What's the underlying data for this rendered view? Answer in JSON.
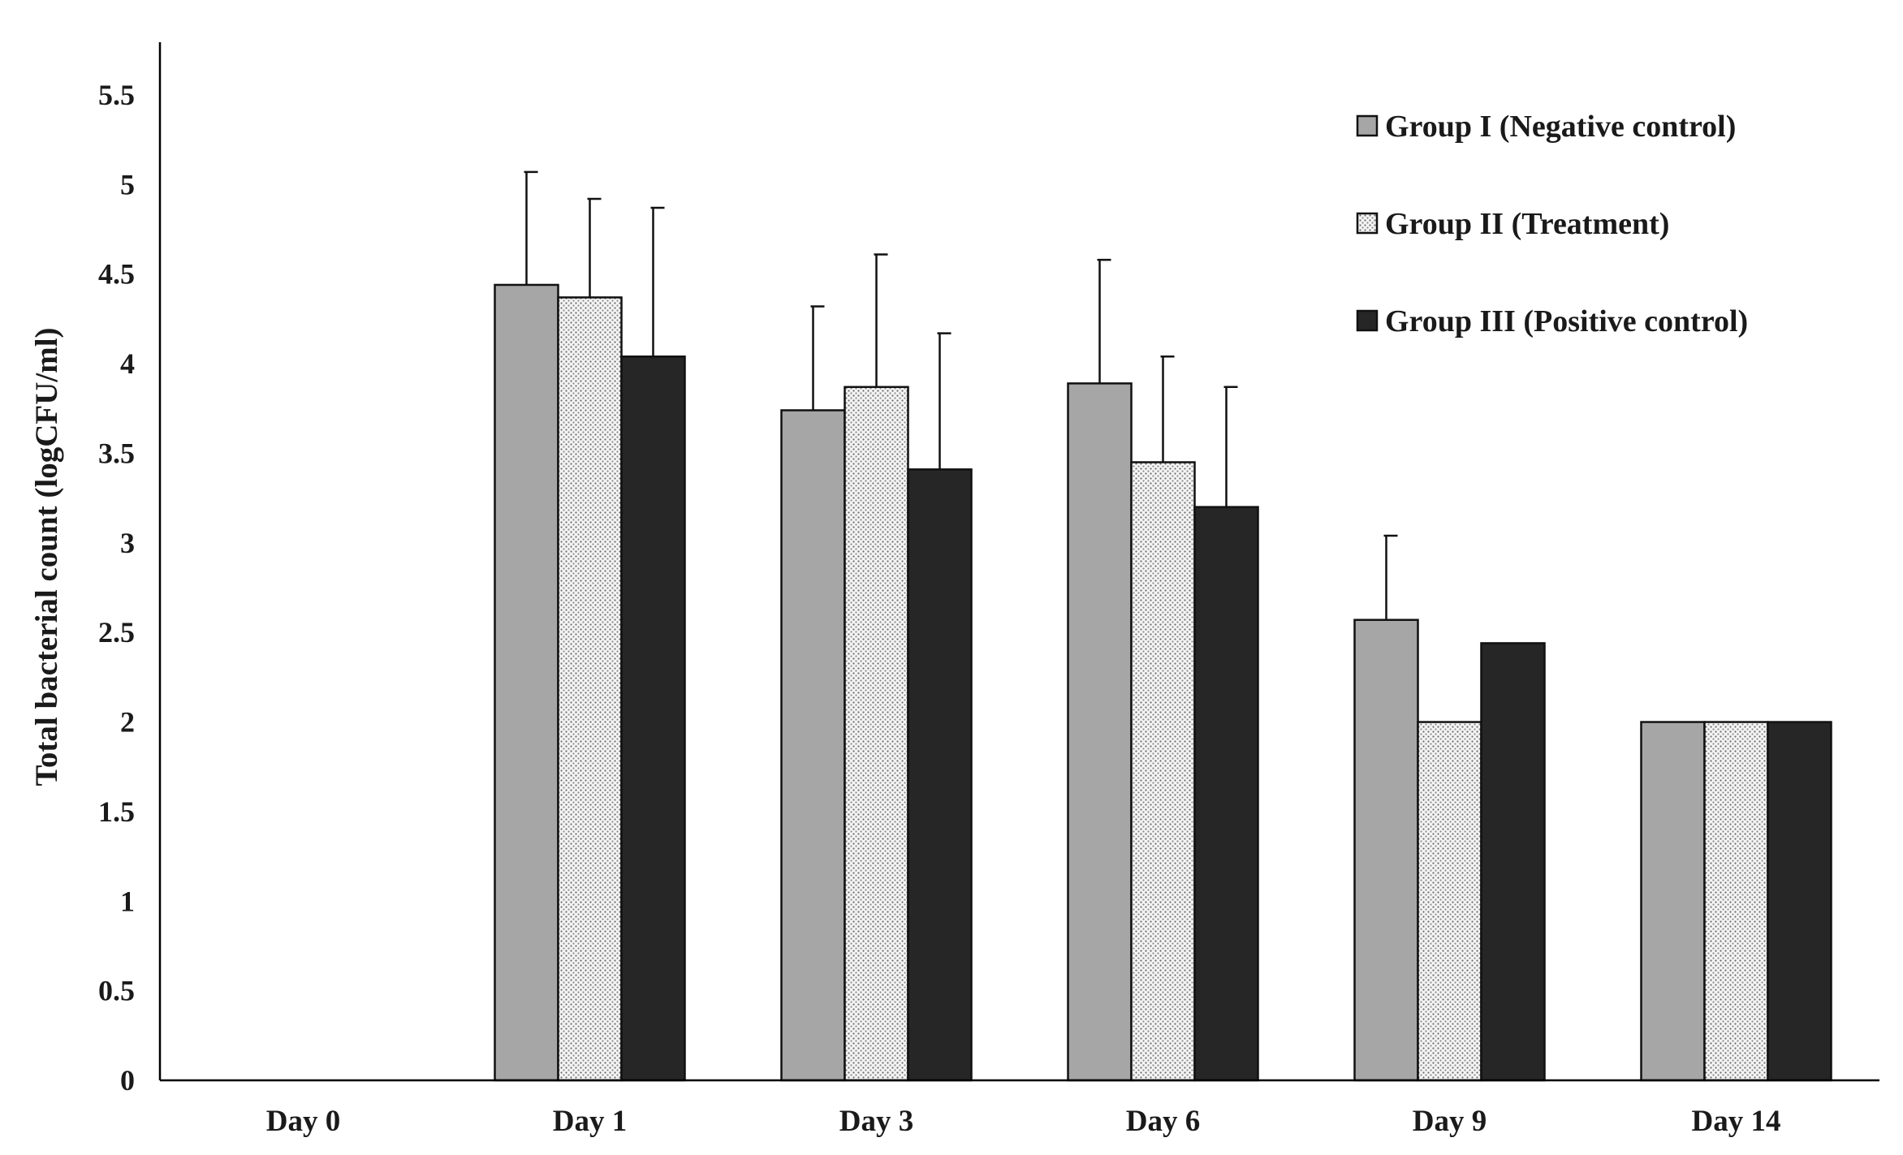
{
  "chart_data": {
    "type": "bar",
    "title": "",
    "xlabel": "",
    "ylabel": "Total bacterial count (logCFU/ml)",
    "ylim": [
      0,
      5.5
    ],
    "yticks": [
      "0",
      "0.5",
      "1",
      "1.5",
      "2",
      "2.5",
      "3",
      "3.5",
      "4",
      "4.5",
      "5",
      "5.5"
    ],
    "categories": [
      "Day 0",
      "Day 1",
      "Day 3",
      "Day 6",
      "Day 9",
      "Day 14"
    ],
    "series": [
      {
        "name": "Group I (Negative control)",
        "color": "#a6a6a6",
        "pattern": "solid",
        "values": [
          0,
          4.44,
          3.74,
          3.89,
          2.57,
          2.0
        ],
        "errors": [
          0,
          0.63,
          0.58,
          0.69,
          0.47,
          0
        ]
      },
      {
        "name": "Group II (Treatment)",
        "color": "#f2f2f2",
        "pattern": "dotted",
        "values": [
          0,
          4.37,
          3.87,
          3.45,
          2.0,
          2.0
        ],
        "errors": [
          0,
          0.55,
          0.74,
          0.59,
          0,
          0
        ]
      },
      {
        "name": "Group III (Positive control)",
        "color": "#262626",
        "pattern": "solid",
        "values": [
          0,
          4.04,
          3.41,
          3.2,
          2.44,
          2.0
        ],
        "errors": [
          0,
          0.83,
          0.76,
          0.67,
          0,
          0
        ]
      }
    ],
    "grid": false,
    "legend_position": "top-right"
  }
}
